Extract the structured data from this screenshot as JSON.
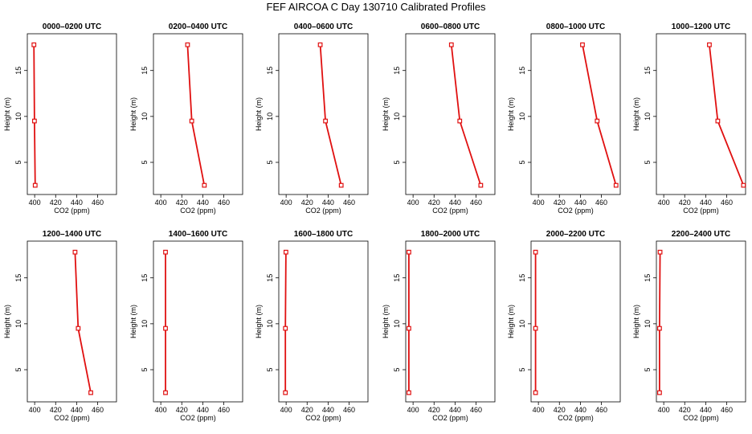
{
  "figure_title": "FEF AIRCOA C  Day 130710  Calibrated Profiles",
  "chart_data": [
    {
      "type": "line",
      "title": "0000–0200 UTC",
      "xlabel": "CO2 (ppm)",
      "ylabel": "Height (m)",
      "xlim": [
        393,
        478
      ],
      "ylim": [
        1.5,
        19
      ],
      "xticks": [
        400,
        420,
        440,
        460
      ],
      "yticks": [
        5,
        10,
        15
      ],
      "series": [
        {
          "x": [
            400.5,
            399.8,
            399.3
          ],
          "y": [
            2.5,
            9.5,
            17.8
          ]
        }
      ]
    },
    {
      "type": "line",
      "title": "0200–0400 UTC",
      "xlabel": "CO2 (ppm)",
      "ylabel": "Height (m)",
      "xlim": [
        393,
        478
      ],
      "ylim": [
        1.5,
        19
      ],
      "xticks": [
        400,
        420,
        440,
        460
      ],
      "yticks": [
        5,
        10,
        15
      ],
      "series": [
        {
          "x": [
            441.5,
            429.5,
            425.5
          ],
          "y": [
            2.5,
            9.5,
            17.8
          ]
        }
      ]
    },
    {
      "type": "line",
      "title": "0400–0600 UTC",
      "xlabel": "CO2 (ppm)",
      "ylabel": "Height (m)",
      "xlim": [
        393,
        478
      ],
      "ylim": [
        1.5,
        19
      ],
      "xticks": [
        400,
        420,
        440,
        460
      ],
      "yticks": [
        5,
        10,
        15
      ],
      "series": [
        {
          "x": [
            452.5,
            437.5,
            432.5
          ],
          "y": [
            2.5,
            9.5,
            17.8
          ]
        }
      ]
    },
    {
      "type": "line",
      "title": "0600–0800 UTC",
      "xlabel": "CO2 (ppm)",
      "ylabel": "Height (m)",
      "xlim": [
        393,
        478
      ],
      "ylim": [
        1.5,
        19
      ],
      "xticks": [
        400,
        420,
        440,
        460
      ],
      "yticks": [
        5,
        10,
        15
      ],
      "series": [
        {
          "x": [
            464.5,
            444.5,
            436.5
          ],
          "y": [
            2.5,
            9.5,
            17.8
          ]
        }
      ]
    },
    {
      "type": "line",
      "title": "0800–1000 UTC",
      "xlabel": "CO2 (ppm)",
      "ylabel": "Height (m)",
      "xlim": [
        393,
        478
      ],
      "ylim": [
        1.5,
        19
      ],
      "xticks": [
        400,
        420,
        440,
        460
      ],
      "yticks": [
        5,
        10,
        15
      ],
      "series": [
        {
          "x": [
            474,
            456,
            442
          ],
          " y": null,
          "y": [
            2.5,
            9.5,
            17.8
          ]
        }
      ]
    },
    {
      "type": "line",
      "title": "1000–1200 UTC",
      "xlabel": "CO2 (ppm)",
      "ylabel": "Height (m)",
      "xlim": [
        393,
        478
      ],
      "ylim": [
        1.5,
        19
      ],
      "xticks": [
        400,
        420,
        440,
        460
      ],
      "yticks": [
        5,
        10,
        15
      ],
      "series": [
        {
          "x": [
            476,
            451.5,
            443.5
          ],
          "y": [
            2.5,
            9.5,
            17.8
          ]
        }
      ]
    },
    {
      "type": "line",
      "title": "1200–1400 UTC",
      "xlabel": "CO2 (ppm)",
      "ylabel": "Height (m)",
      "xlim": [
        393,
        478
      ],
      "ylim": [
        1.5,
        19
      ],
      "xticks": [
        400,
        420,
        440,
        460
      ],
      "yticks": [
        5,
        10,
        15
      ],
      "series": [
        {
          "x": [
            453.5,
            441.5,
            438.5
          ],
          "y": [
            2.5,
            9.5,
            17.8
          ]
        }
      ]
    },
    {
      "type": "line",
      "title": "1400–1600 UTC",
      "xlabel": "CO2 (ppm)",
      "ylabel": "Height (m)",
      "xlim": [
        393,
        478
      ],
      "ylim": [
        1.5,
        19
      ],
      "xticks": [
        400,
        420,
        440,
        460
      ],
      "yticks": [
        5,
        10,
        15
      ],
      "series": [
        {
          "x": [
            404.5,
            404.5,
            404.5
          ],
          "y": [
            2.5,
            9.5,
            17.8
          ]
        }
      ]
    },
    {
      "type": "line",
      "title": "1600–1800 UTC",
      "xlabel": "CO2 (ppm)",
      "ylabel": "Height (m)",
      "xlim": [
        393,
        478
      ],
      "ylim": [
        1.5,
        19
      ],
      "xticks": [
        400,
        420,
        440,
        460
      ],
      "yticks": [
        5,
        10,
        15
      ],
      "series": [
        {
          "x": [
            399.3,
            399.3,
            399.8
          ],
          "y": [
            2.5,
            9.5,
            17.8
          ]
        }
      ]
    },
    {
      "type": "line",
      "title": "1800–2000 UTC",
      "xlabel": "CO2 (ppm)",
      "ylabel": "Height (m)",
      "xlim": [
        393,
        478
      ],
      "ylim": [
        1.5,
        19
      ],
      "xticks": [
        400,
        420,
        440,
        460
      ],
      "yticks": [
        5,
        10,
        15
      ],
      "series": [
        {
          "x": [
            396,
            396,
            396
          ],
          "y": [
            2.5,
            9.5,
            17.8
          ]
        }
      ]
    },
    {
      "type": "line",
      "title": "2000–2200 UTC",
      "xlabel": "CO2 (ppm)",
      "ylabel": "Height (m)",
      "xlim": [
        393,
        478
      ],
      "ylim": [
        1.5,
        19
      ],
      "xticks": [
        400,
        420,
        440,
        460
      ],
      "yticks": [
        5,
        10,
        15
      ],
      "series": [
        {
          "x": [
            397.3,
            397.3,
            397.3
          ],
          "y": [
            2.5,
            9.5,
            17.8
          ]
        }
      ]
    },
    {
      "type": "line",
      "title": "2200–2400 UTC",
      "xlabel": "CO2 (ppm)",
      "ylabel": "Height (m)",
      "xlim": [
        393,
        478
      ],
      "ylim": [
        1.5,
        19
      ],
      "xticks": [
        400,
        420,
        440,
        460
      ],
      "yticks": [
        5,
        10,
        15
      ],
      "series": [
        {
          "x": [
            396,
            396,
            396.5
          ],
          "y": [
            2.5,
            9.5,
            17.8
          ]
        }
      ]
    }
  ],
  "style": {
    "line_color": "#e01010",
    "axis_color": "#000000"
  }
}
